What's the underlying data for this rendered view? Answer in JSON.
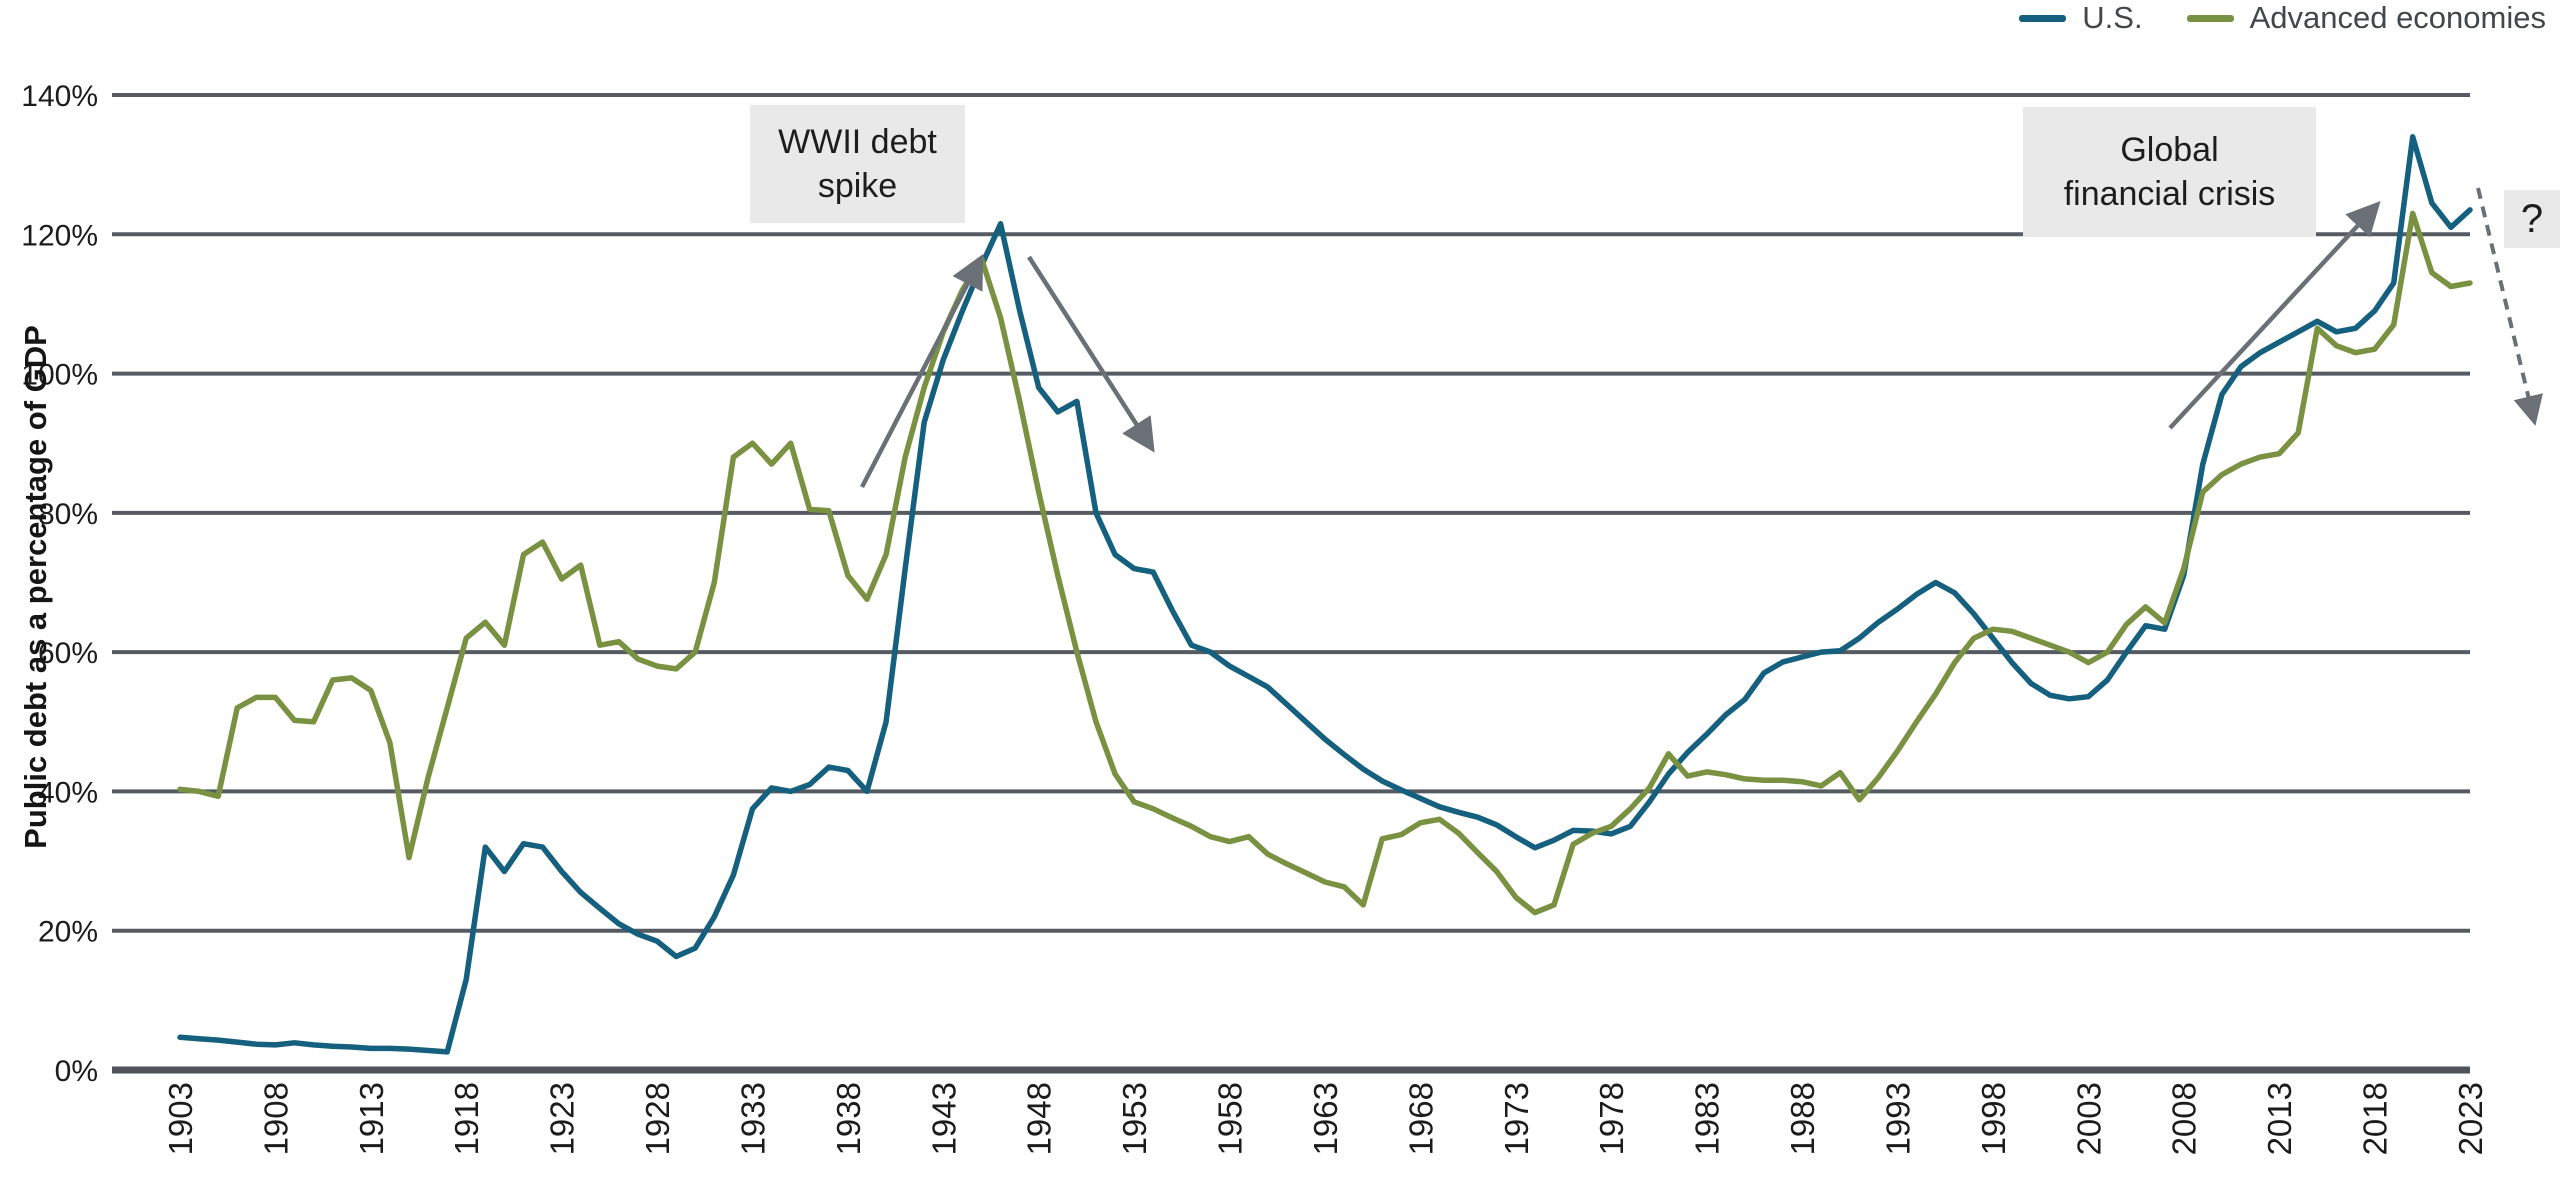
{
  "legend": {
    "items": [
      {
        "label": "U.S.",
        "color": "#15607E"
      },
      {
        "label": "Advanced economies",
        "color": "#7A9142"
      }
    ]
  },
  "y_axis": {
    "title": "Public debt as a percentage of GDP",
    "tick_labels": [
      "0%",
      "20%",
      "40%",
      "60%",
      "80%",
      "100%",
      "120%",
      "140%"
    ]
  },
  "x_axis": {
    "tick_labels": [
      "1903",
      "1908",
      "1913",
      "1918",
      "1923",
      "1928",
      "1933",
      "1938",
      "1943",
      "1948",
      "1953",
      "1958",
      "1963",
      "1968",
      "1973",
      "1978",
      "1983",
      "1988",
      "1993",
      "1998",
      "2003",
      "2008",
      "2013",
      "2018",
      "2023"
    ]
  },
  "annotations": {
    "wwii": {
      "line1": "WWII debt",
      "line2": "spike"
    },
    "gfc": {
      "line1": "Global",
      "line2": "financial crisis"
    },
    "question_mark": "?"
  },
  "colors": {
    "us_line": "#15607E",
    "ae_line": "#7A9142",
    "gridline": "#565b61",
    "axis_line": "#4e545a",
    "arrow": "#6a7076",
    "annotation_bg": "#e9e9e9"
  },
  "chart_data": {
    "type": "line",
    "title": "",
    "xlabel": "",
    "ylabel": "Public debt as a percentage of GDP",
    "ylim": [
      0,
      140
    ],
    "grid": "horizontal",
    "legend_position": "top-right",
    "x_start_year": 1903,
    "x_end_year": 2023,
    "series": [
      {
        "name": "U.S.",
        "color": "#15607E",
        "values": [
          4.7,
          4.5,
          4.3,
          4.0,
          3.7,
          3.6,
          3.9,
          3.6,
          3.4,
          3.3,
          3.1,
          3.1,
          3.0,
          2.8,
          2.6,
          13.0,
          32.0,
          28.5,
          32.5,
          32.0,
          28.5,
          25.5,
          23.2,
          21.0,
          19.5,
          18.5,
          16.3,
          17.5,
          22.0,
          28.0,
          37.5,
          40.5,
          40.0,
          41.0,
          43.5,
          43.0,
          40.0,
          50.0,
          72.0,
          93.0,
          102.0,
          109.0,
          115.5,
          121.5,
          109.0,
          98.0,
          94.5,
          96.0,
          80.0,
          74.0,
          72.0,
          71.5,
          66.0,
          61.0,
          60.0,
          58.0,
          56.5,
          55.0,
          52.5,
          50.0,
          47.5,
          45.3,
          43.2,
          41.5,
          40.2,
          39.0,
          37.8,
          37.0,
          36.3,
          35.2,
          33.5,
          31.9,
          33.0,
          34.4,
          34.3,
          33.9,
          35.0,
          38.5,
          42.5,
          45.6,
          48.2,
          51.0,
          53.2,
          57.0,
          58.6,
          59.3,
          60.0,
          60.2,
          62.0,
          64.3,
          66.2,
          68.3,
          70.0,
          68.5,
          65.5,
          62.0,
          58.5,
          55.5,
          53.8,
          53.3,
          53.6,
          56.0,
          60.0,
          63.8,
          63.3,
          71.0,
          87.0,
          97.0,
          101.0,
          103.0,
          104.5,
          106.0,
          107.5,
          106.0,
          106.5,
          109.0,
          113.0,
          134.0,
          124.5,
          121.0,
          123.5
        ]
      },
      {
        "name": "Advanced economies",
        "color": "#7A9142",
        "values": [
          40.3,
          40.0,
          39.3,
          52.0,
          53.5,
          53.5,
          50.2,
          50.0,
          56.0,
          56.3,
          54.5,
          47.0,
          30.5,
          42.0,
          52.0,
          62.0,
          64.3,
          61.0,
          74.0,
          75.8,
          70.5,
          72.5,
          61.0,
          61.5,
          59.0,
          58.0,
          57.6,
          60.0,
          70.0,
          88.0,
          90.0,
          87.0,
          90.0,
          80.5,
          80.3,
          71.0,
          67.6,
          74.0,
          88.0,
          98.0,
          106.0,
          112.0,
          116.5,
          108.0,
          96.0,
          83.0,
          71.0,
          60.0,
          50.0,
          42.5,
          38.5,
          37.5,
          36.2,
          35.0,
          33.5,
          32.8,
          33.5,
          31.0,
          29.6,
          28.3,
          27.0,
          26.3,
          23.7,
          33.2,
          33.8,
          35.5,
          36.0,
          34.0,
          31.2,
          28.5,
          24.8,
          22.6,
          23.7,
          32.4,
          34.0,
          35.0,
          37.5,
          40.5,
          45.4,
          42.2,
          42.8,
          42.4,
          41.8,
          41.6,
          41.6,
          41.4,
          40.8,
          42.7,
          38.8,
          42.0,
          45.8,
          50.0,
          54.0,
          58.5,
          62.0,
          63.3,
          63.0,
          62.0,
          61.0,
          60.0,
          58.5,
          60.0,
          64.0,
          66.5,
          64.2,
          72.0,
          83.0,
          85.5,
          87.0,
          88.0,
          88.5,
          91.5,
          106.5,
          104.0,
          103.0,
          103.5,
          107.0,
          123.0,
          114.5,
          112.5,
          113.0
        ]
      }
    ],
    "annotations": [
      {
        "text": "WWII debt spike",
        "type": "label-box"
      },
      {
        "text": "Global financial crisis",
        "type": "label-box"
      },
      {
        "text": "?",
        "type": "label-box"
      }
    ]
  }
}
